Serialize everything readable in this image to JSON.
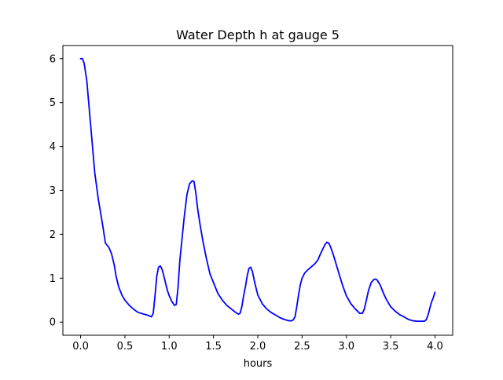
{
  "chart_data": {
    "type": "line",
    "title": "Water Depth h at gauge 5",
    "xlabel": "hours",
    "ylabel": "",
    "xlim": [
      -0.2,
      4.2
    ],
    "ylim": [
      -0.3,
      6.3
    ],
    "xticks": [
      0.0,
      0.5,
      1.0,
      1.5,
      2.0,
      2.5,
      3.0,
      3.5,
      4.0
    ],
    "xtick_labels": [
      "0.0",
      "0.5",
      "1.0",
      "1.5",
      "2.0",
      "2.5",
      "3.0",
      "3.5",
      "4.0"
    ],
    "yticks": [
      0,
      1,
      2,
      3,
      4,
      5,
      6
    ],
    "ytick_labels": [
      "0",
      "1",
      "2",
      "3",
      "4",
      "5",
      "6"
    ],
    "grid": false,
    "legend": false,
    "series": [
      {
        "color": "#0000ff",
        "x": [
          0.0,
          0.02,
          0.04,
          0.07,
          0.1,
          0.13,
          0.16,
          0.2,
          0.25,
          0.28,
          0.3,
          0.32,
          0.35,
          0.38,
          0.4,
          0.43,
          0.47,
          0.5,
          0.55,
          0.6,
          0.65,
          0.7,
          0.75,
          0.78,
          0.8,
          0.82,
          0.84,
          0.86,
          0.88,
          0.9,
          0.92,
          0.94,
          0.96,
          0.98,
          1.0,
          1.03,
          1.06,
          1.08,
          1.1,
          1.12,
          1.14,
          1.17,
          1.2,
          1.23,
          1.26,
          1.28,
          1.3,
          1.32,
          1.35,
          1.38,
          1.42,
          1.46,
          1.5,
          1.55,
          1.6,
          1.65,
          1.7,
          1.75,
          1.78,
          1.8,
          1.82,
          1.84,
          1.86,
          1.88,
          1.9,
          1.92,
          1.94,
          1.96,
          1.98,
          2.0,
          2.05,
          2.1,
          2.15,
          2.2,
          2.25,
          2.3,
          2.35,
          2.38,
          2.4,
          2.42,
          2.44,
          2.46,
          2.48,
          2.5,
          2.53,
          2.56,
          2.6,
          2.64,
          2.68,
          2.7,
          2.73,
          2.76,
          2.78,
          2.8,
          2.82,
          2.85,
          2.88,
          2.92,
          2.96,
          3.0,
          3.05,
          3.1,
          3.15,
          3.18,
          3.2,
          3.22,
          3.25,
          3.28,
          3.31,
          3.33,
          3.35,
          3.38,
          3.42,
          3.45,
          3.5,
          3.55,
          3.6,
          3.65,
          3.7,
          3.75,
          3.8,
          3.85,
          3.88,
          3.9,
          3.92,
          3.94,
          3.96,
          3.98,
          4.0
        ],
        "y": [
          6.0,
          6.0,
          5.9,
          5.5,
          4.8,
          4.1,
          3.4,
          2.8,
          2.2,
          1.8,
          1.75,
          1.7,
          1.55,
          1.3,
          1.05,
          0.8,
          0.6,
          0.5,
          0.38,
          0.29,
          0.22,
          0.19,
          0.16,
          0.14,
          0.12,
          0.2,
          0.6,
          1.05,
          1.25,
          1.28,
          1.2,
          1.05,
          0.88,
          0.72,
          0.6,
          0.47,
          0.38,
          0.4,
          0.8,
          1.4,
          1.8,
          2.4,
          2.9,
          3.15,
          3.22,
          3.2,
          2.95,
          2.6,
          2.2,
          1.85,
          1.45,
          1.1,
          0.9,
          0.65,
          0.5,
          0.38,
          0.3,
          0.22,
          0.18,
          0.2,
          0.35,
          0.6,
          0.8,
          1.05,
          1.22,
          1.25,
          1.15,
          0.95,
          0.78,
          0.62,
          0.42,
          0.3,
          0.22,
          0.16,
          0.1,
          0.06,
          0.03,
          0.03,
          0.05,
          0.12,
          0.35,
          0.62,
          0.85,
          1.0,
          1.12,
          1.18,
          1.25,
          1.32,
          1.42,
          1.52,
          1.65,
          1.77,
          1.82,
          1.8,
          1.72,
          1.55,
          1.35,
          1.08,
          0.82,
          0.6,
          0.42,
          0.3,
          0.2,
          0.2,
          0.28,
          0.45,
          0.72,
          0.9,
          0.97,
          0.98,
          0.95,
          0.85,
          0.65,
          0.52,
          0.35,
          0.25,
          0.17,
          0.12,
          0.06,
          0.03,
          0.02,
          0.02,
          0.02,
          0.05,
          0.15,
          0.3,
          0.45,
          0.55,
          0.68
        ]
      }
    ]
  }
}
